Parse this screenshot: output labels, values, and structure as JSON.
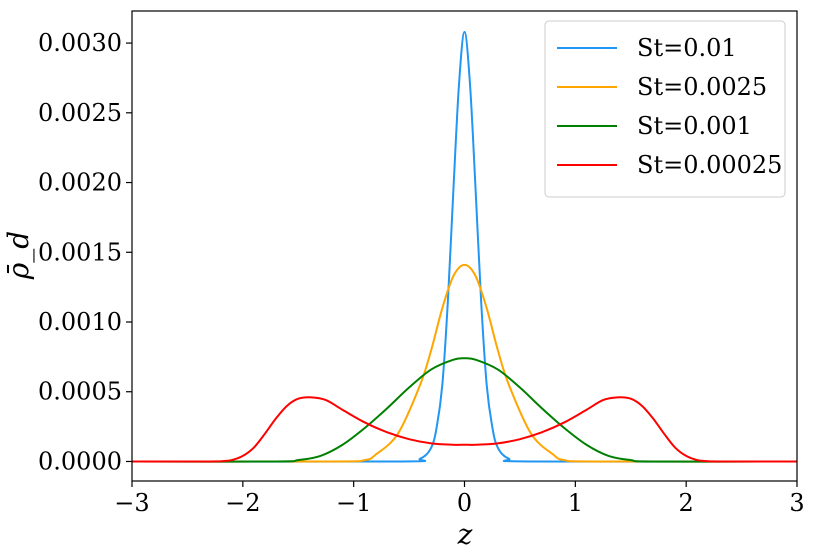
{
  "chart_data": {
    "type": "line",
    "title": "",
    "xlabel": "z",
    "ylabel": "ρ̄_d",
    "xlim": [
      -3,
      3
    ],
    "ylim": [
      -0.00014,
      0.00323
    ],
    "xticks": [
      -3,
      -2,
      -1,
      0,
      1,
      2,
      3
    ],
    "xtick_labels": [
      "−3",
      "−2",
      "−1",
      "0",
      "1",
      "2",
      "3"
    ],
    "yticks": [
      0,
      0.0005,
      0.001,
      0.0015,
      0.002,
      0.0025,
      0.003
    ],
    "ytick_labels": [
      "0.0000",
      "0.0005",
      "0.0010",
      "0.0015",
      "0.0020",
      "0.0025",
      "0.0030"
    ],
    "grid": false,
    "legend_position": "top-right",
    "series": [
      {
        "name": "St=0.01",
        "color": "#2196f3",
        "x": [
          -3,
          -0.6,
          -0.4,
          -0.3,
          -0.25,
          -0.2,
          -0.15,
          -0.1,
          -0.05,
          0,
          0.05,
          0.1,
          0.15,
          0.2,
          0.25,
          0.3,
          0.4,
          0.6,
          3
        ],
        "y": [
          0,
          0,
          2e-05,
          0.0001,
          0.00025,
          0.00055,
          0.00115,
          0.00195,
          0.0027,
          0.00308,
          0.0027,
          0.00195,
          0.00115,
          0.00055,
          0.00025,
          0.0001,
          2e-05,
          0,
          0
        ]
      },
      {
        "name": "St=0.0025",
        "color": "#ffa500",
        "x": [
          -3,
          -1.2,
          -0.9,
          -0.8,
          -0.6,
          -0.4,
          -0.3,
          -0.2,
          -0.1,
          0,
          0.1,
          0.2,
          0.3,
          0.4,
          0.6,
          0.8,
          0.9,
          1.2,
          3
        ],
        "y": [
          0,
          0,
          1e-05,
          5e-05,
          0.0002,
          0.00055,
          0.0008,
          0.0011,
          0.00133,
          0.00141,
          0.00133,
          0.0011,
          0.0008,
          0.00055,
          0.0002,
          5e-05,
          1e-05,
          0,
          0
        ]
      },
      {
        "name": "St=0.001",
        "color": "#008000",
        "x": [
          -3,
          -1.7,
          -1.5,
          -1.3,
          -1.1,
          -0.9,
          -0.7,
          -0.5,
          -0.3,
          -0.1,
          0,
          0.1,
          0.3,
          0.5,
          0.7,
          0.9,
          1.1,
          1.3,
          1.5,
          1.7,
          3
        ],
        "y": [
          0,
          0,
          1e-05,
          4e-05,
          0.00012,
          0.00024,
          0.00038,
          0.00053,
          0.00066,
          0.00073,
          0.00074,
          0.00073,
          0.00066,
          0.00053,
          0.00038,
          0.00024,
          0.00012,
          4e-05,
          1e-05,
          0,
          0
        ]
      },
      {
        "name": "St=0.00025",
        "color": "#ff0000",
        "x": [
          -3,
          -2.3,
          -2.2,
          -2.1,
          -2.0,
          -1.9,
          -1.8,
          -1.7,
          -1.6,
          -1.5,
          -1.38,
          -1.25,
          -1.1,
          -0.9,
          -0.7,
          -0.5,
          -0.3,
          -0.1,
          0,
          0.1,
          0.3,
          0.5,
          0.7,
          0.9,
          1.1,
          1.25,
          1.38,
          1.5,
          1.6,
          1.7,
          1.8,
          1.9,
          2.0,
          2.1,
          2.2,
          2.3,
          3
        ],
        "y": [
          0,
          0,
          2e-06,
          1e-05,
          4e-05,
          0.0001,
          0.0002,
          0.00031,
          0.0004,
          0.00045,
          0.00046,
          0.00044,
          0.00037,
          0.00028,
          0.00021,
          0.00016,
          0.00013,
          0.00012,
          0.00012,
          0.00012,
          0.00013,
          0.00016,
          0.00021,
          0.00028,
          0.00037,
          0.00044,
          0.00046,
          0.00045,
          0.0004,
          0.00031,
          0.0002,
          0.0001,
          4e-05,
          1e-05,
          2e-06,
          0,
          0
        ]
      }
    ]
  }
}
